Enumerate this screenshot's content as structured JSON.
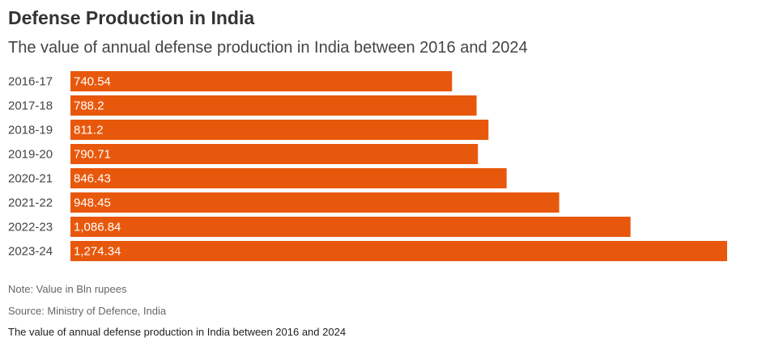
{
  "header": {
    "title": "Defense Production in India",
    "subtitle": "The value of annual defense production in India between 2016 and 2024"
  },
  "chart_data": {
    "type": "bar",
    "orientation": "horizontal",
    "categories": [
      "2016-17",
      "2017-18",
      "2018-19",
      "2019-20",
      "2020-21",
      "2021-22",
      "2022-23",
      "2023-24"
    ],
    "values": [
      740.54,
      788.2,
      811.2,
      790.71,
      846.43,
      948.45,
      1086.84,
      1274.34
    ],
    "value_labels": [
      "740.54",
      "788.2",
      "811.2",
      "790.71",
      "846.43",
      "948.45",
      "1,086.84",
      "1,274.34"
    ],
    "xlim": [
      0,
      1274.34
    ],
    "grid": false,
    "bar_color": "#e8580c",
    "title": "Defense Production in India",
    "subtitle": "The value of annual defense production in India between 2016 and 2024"
  },
  "footer": {
    "note": "Note: Value in Bln rupees",
    "source": "Source: Ministry of Defence, India",
    "caption": "The value of annual defense production in India between 2016 and 2024"
  }
}
